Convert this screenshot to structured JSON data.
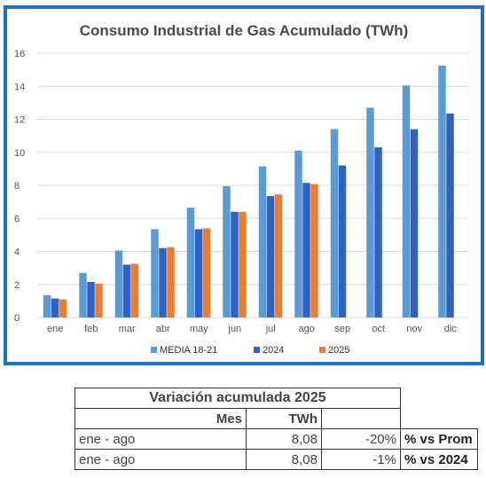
{
  "chart_data": {
    "type": "bar",
    "title": "Consumo Industrial de Gas Acumulado (TWh)",
    "categories": [
      "ene",
      "feb",
      "mar",
      "abr",
      "may",
      "jun",
      "jul",
      "ago",
      "sep",
      "oct",
      "nov",
      "dic"
    ],
    "series": [
      {
        "name": "MEDIA 18-21",
        "color": "#5B9BD5",
        "values": [
          1.35,
          2.7,
          4.05,
          5.35,
          6.65,
          7.95,
          9.15,
          10.1,
          11.4,
          12.7,
          14.05,
          15.25
        ]
      },
      {
        "name": "2024",
        "color": "#2F62C4",
        "values": [
          1.15,
          2.15,
          3.2,
          4.2,
          5.35,
          6.4,
          7.35,
          8.15,
          9.2,
          10.3,
          11.4,
          12.35
        ]
      },
      {
        "name": "2025",
        "color": "#ED7D31",
        "values": [
          1.1,
          2.05,
          3.25,
          4.25,
          5.4,
          6.4,
          7.45,
          8.08,
          null,
          null,
          null,
          null
        ]
      }
    ],
    "yticks": [
      0,
      2,
      4,
      6,
      8,
      10,
      12,
      14,
      16
    ],
    "ylim": [
      0,
      16
    ],
    "grid": true,
    "legend": "bottom"
  },
  "table": {
    "title": "Variación acumulada 2025",
    "header": {
      "mes": "Mes",
      "twh": "TWh"
    },
    "rows": [
      {
        "mes": "ene - ago",
        "twh": "8,08",
        "pct": "-20%",
        "label": "% vs Prom"
      },
      {
        "mes": "ene - ago",
        "twh": "8,08",
        "pct": "-1%",
        "label": "% vs 2024"
      }
    ]
  }
}
